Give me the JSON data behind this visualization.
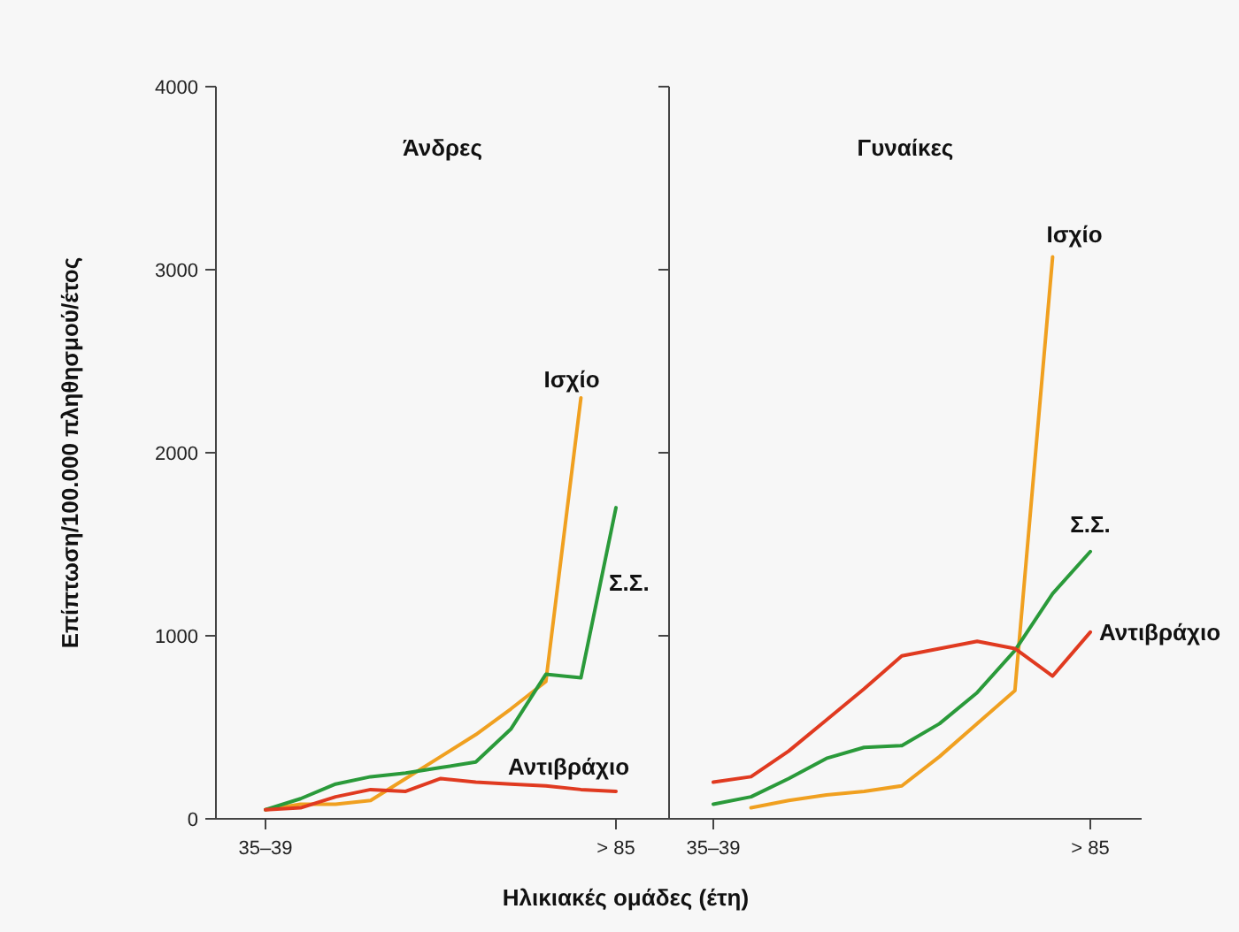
{
  "chart_data": [
    {
      "type": "line",
      "title": "Άνδρες",
      "xlabel": "Ηλικιακές ομάδες (έτη)",
      "ylabel": "Επίπτωση/100.000 πληθησμού/έτος",
      "categories": [
        "35–39",
        null,
        null,
        null,
        null,
        null,
        null,
        null,
        null,
        null,
        "> 85"
      ],
      "ylim": [
        0,
        4000
      ],
      "yticks": [
        0,
        1000,
        2000,
        3000,
        4000
      ],
      "grid": false,
      "marker": "none",
      "line_style": "solid",
      "series": [
        {
          "name": "Ισχίο",
          "color": "#f0a020",
          "values": [
            50,
            80,
            80,
            100,
            220,
            340,
            460,
            600,
            750,
            2300,
            null
          ]
        },
        {
          "name": "Σ.Σ.",
          "color": "#2a9a3a",
          "values": [
            50,
            110,
            190,
            230,
            250,
            280,
            310,
            490,
            790,
            770,
            1700
          ]
        },
        {
          "name": "Αντιβράχιο",
          "color": "#e03a20",
          "values": [
            50,
            60,
            120,
            160,
            150,
            220,
            200,
            190,
            180,
            160,
            150
          ]
        }
      ]
    },
    {
      "type": "line",
      "title": "Γυναίκες",
      "categories": [
        "35–39",
        null,
        null,
        null,
        null,
        null,
        null,
        null,
        null,
        null,
        "> 85"
      ],
      "ylim": [
        0,
        4000
      ],
      "yticks": [
        0,
        1000,
        2000,
        3000,
        4000
      ],
      "tick_labels": "x",
      "grid": false,
      "marker": "none",
      "line_style": "solid",
      "series": [
        {
          "name": "Ισχίο",
          "color": "#f0a020",
          "values": [
            null,
            60,
            100,
            130,
            150,
            180,
            340,
            520,
            700,
            3070,
            null
          ]
        },
        {
          "name": "Σ.Σ.",
          "color": "#2a9a3a",
          "values": [
            80,
            120,
            220,
            330,
            390,
            400,
            520,
            690,
            920,
            1230,
            1460
          ]
        },
        {
          "name": "Αντιβράχιο",
          "color": "#e03a20",
          "values": [
            200,
            230,
            370,
            540,
            710,
            890,
            930,
            970,
            930,
            780,
            1020
          ]
        }
      ]
    }
  ]
}
